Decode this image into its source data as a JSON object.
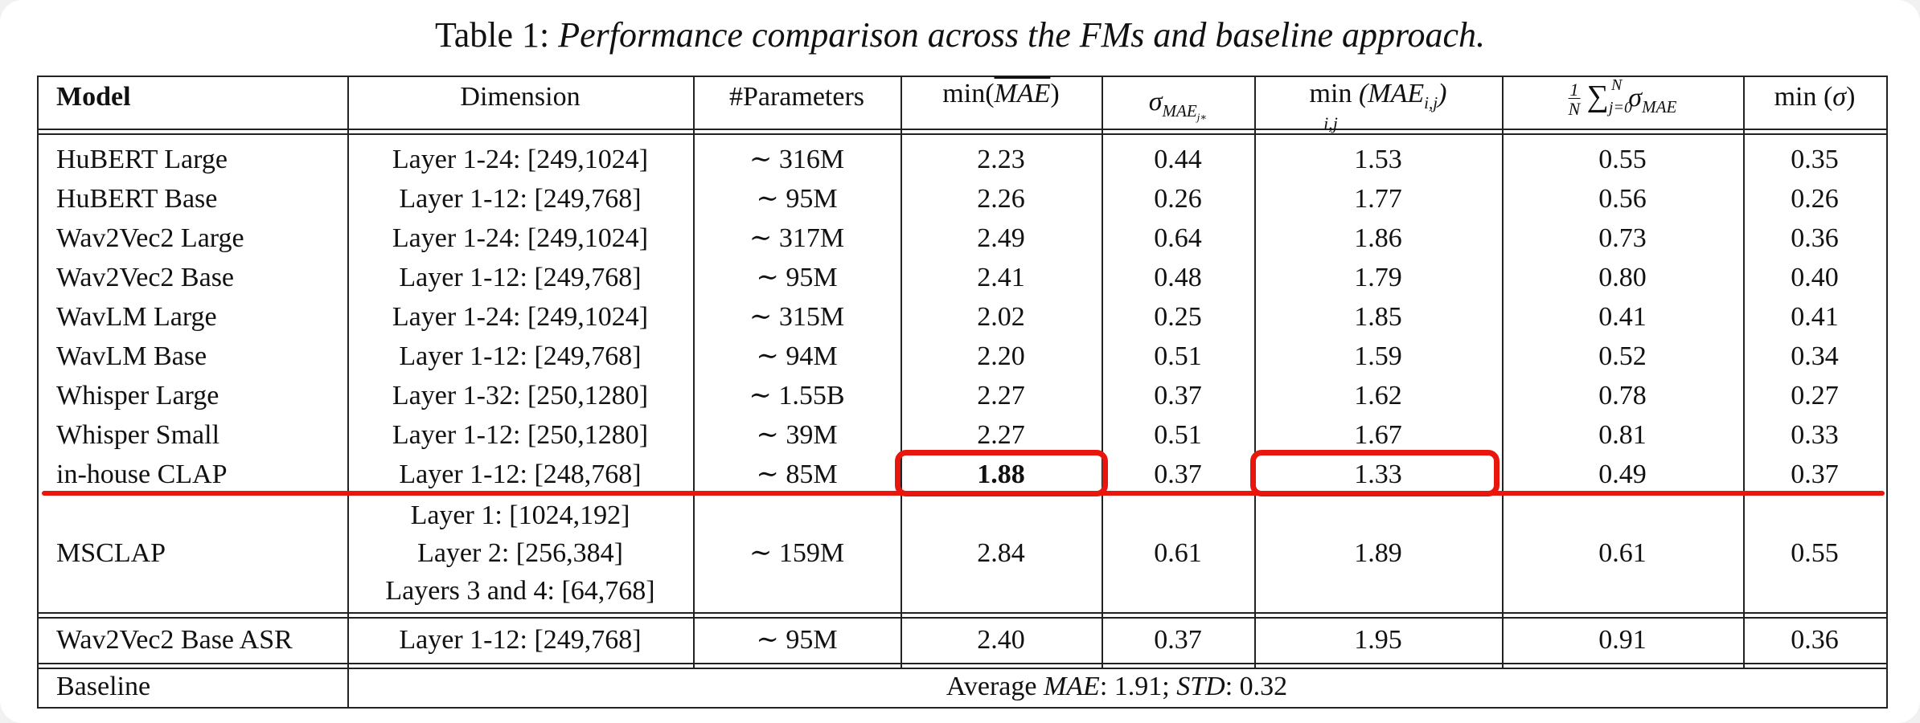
{
  "caption": {
    "label": "Table 1:",
    "title": "Performance comparison across the FMs and baseline approach."
  },
  "header": {
    "model": "Model",
    "dimension": "Dimension",
    "params": "#Parameters",
    "min_mae": "min(MAE)",
    "sigma_mae": "σMAEj*",
    "min_ij": "min (MAEi,j)",
    "mean_sigma": "1/N Σj=0..N σMAE",
    "min_sigma": "min (σ)"
  },
  "rows": [
    {
      "model": "HuBERT Large",
      "dimension": "Layer 1-24: [249,1024]",
      "params": "∼ 316M",
      "min_mae": "2.23",
      "sigma": "0.44",
      "min_ij": "1.53",
      "mean_sigma": "0.55",
      "min_sigma": "0.35"
    },
    {
      "model": "HuBERT Base",
      "dimension": "Layer 1-12: [249,768]",
      "params": "∼ 95M",
      "min_mae": "2.26",
      "sigma": "0.26",
      "min_ij": "1.77",
      "mean_sigma": "0.56",
      "min_sigma": "0.26"
    },
    {
      "model": "Wav2Vec2 Large",
      "dimension": "Layer 1-24: [249,1024]",
      "params": "∼ 317M",
      "min_mae": "2.49",
      "sigma": "0.64",
      "min_ij": "1.86",
      "mean_sigma": "0.73",
      "min_sigma": "0.36"
    },
    {
      "model": "Wav2Vec2 Base",
      "dimension": "Layer 1-12: [249,768]",
      "params": "∼ 95M",
      "min_mae": "2.41",
      "sigma": "0.48",
      "min_ij": "1.79",
      "mean_sigma": "0.80",
      "min_sigma": "0.40"
    },
    {
      "model": "WavLM Large",
      "dimension": "Layer 1-24: [249,1024]",
      "params": "∼ 315M",
      "min_mae": "2.02",
      "sigma": "0.25",
      "min_ij": "1.85",
      "mean_sigma": "0.41",
      "min_sigma": "0.41"
    },
    {
      "model": "WavLM Base",
      "dimension": "Layer 1-12: [249,768]",
      "params": "∼ 94M",
      "min_mae": "2.20",
      "sigma": "0.51",
      "min_ij": "1.59",
      "mean_sigma": "0.52",
      "min_sigma": "0.34"
    },
    {
      "model": "Whisper Large",
      "dimension": "Layer 1-32: [250,1280]",
      "params": "∼ 1.55B",
      "min_mae": "2.27",
      "sigma": "0.37",
      "min_ij": "1.62",
      "mean_sigma": "0.78",
      "min_sigma": "0.27"
    },
    {
      "model": "Whisper Small",
      "dimension": "Layer 1-12: [250,1280]",
      "params": "∼ 39M",
      "min_mae": "2.27",
      "sigma": "0.51",
      "min_ij": "1.67",
      "mean_sigma": "0.81",
      "min_sigma": "0.33"
    },
    {
      "model": "in-house CLAP",
      "dimension": "Layer 1-12: [248,768]",
      "params": "∼ 85M",
      "min_mae": "1.88",
      "sigma": "0.37",
      "min_ij": "1.33",
      "mean_sigma": "0.49",
      "min_sigma": "0.37"
    }
  ],
  "msclap": {
    "model": "MSCLAP",
    "dimension_lines": [
      "Layer 1: [1024,192]",
      "Layer 2: [256,384]",
      "Layers 3 and 4: [64,768]"
    ],
    "params": "∼ 159M",
    "min_mae": "2.84",
    "sigma": "0.61",
    "min_ij": "1.89",
    "mean_sigma": "0.61",
    "min_sigma": "0.55"
  },
  "asr": {
    "model": "Wav2Vec2 Base ASR",
    "dimension": "Layer 1-12: [249,768]",
    "params": "∼ 95M",
    "min_mae": "2.40",
    "sigma": "0.37",
    "min_ij": "1.95",
    "mean_sigma": "0.91",
    "min_sigma": "0.36"
  },
  "baseline": {
    "model": "Baseline",
    "avg_label": "Average",
    "mae_symbol": "MAE",
    "mae_value": ": 1.91;",
    "std_symbol": "STD",
    "std_value": ": 0.32"
  },
  "annotation_color": "#e8160c"
}
